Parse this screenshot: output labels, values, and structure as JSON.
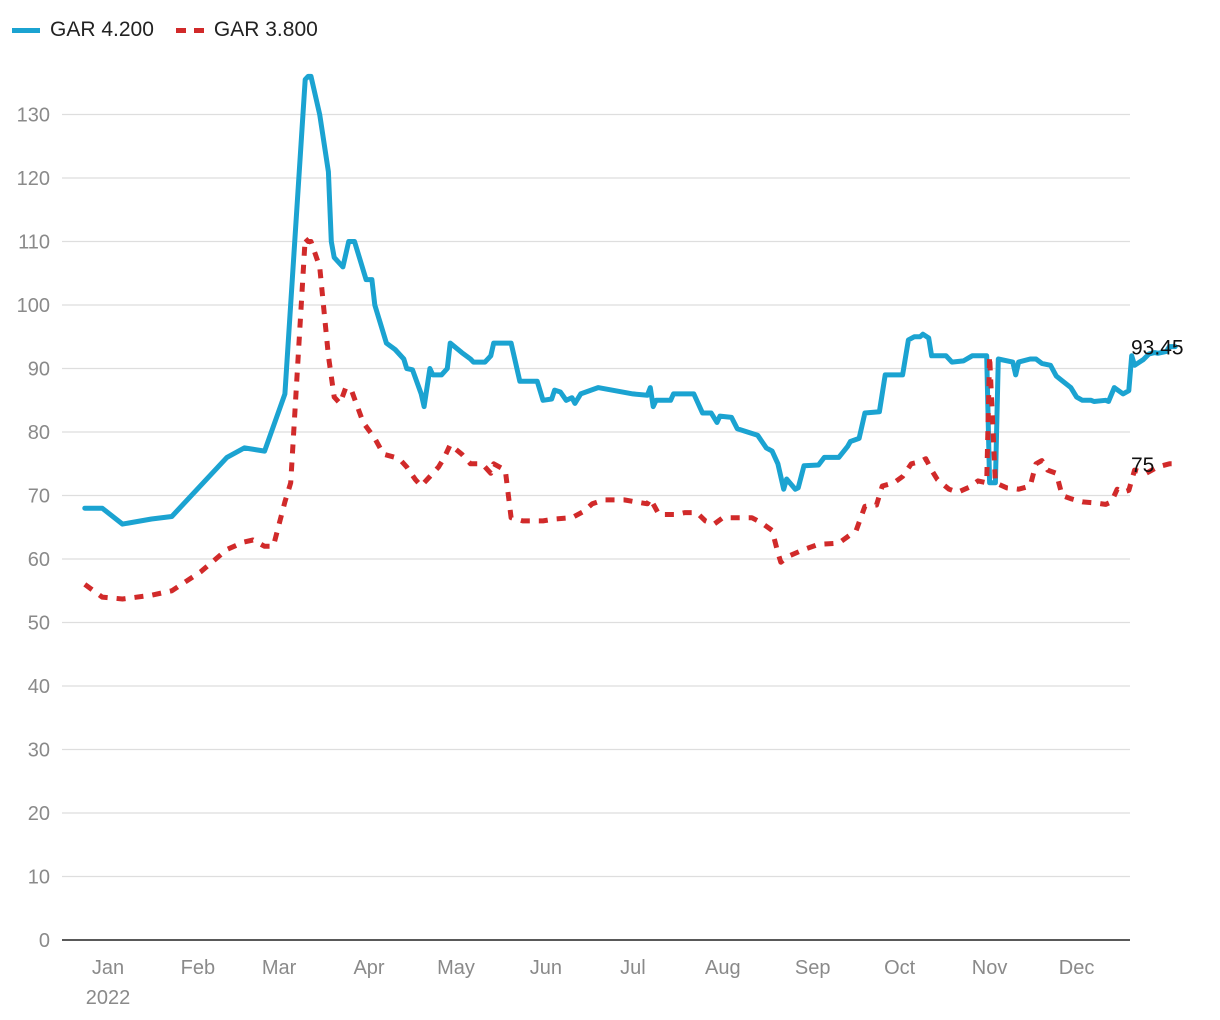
{
  "legend": [
    {
      "label": "GAR 4.200",
      "color": "#1ba3d1",
      "style": "solid"
    },
    {
      "label": "GAR 3.800",
      "color": "#d12a2a",
      "style": "dashed"
    }
  ],
  "chart_data": {
    "type": "line",
    "ylim": [
      0,
      140
    ],
    "yticks": [
      0,
      10,
      20,
      30,
      40,
      50,
      60,
      70,
      80,
      90,
      100,
      110,
      120,
      130
    ],
    "grid": true,
    "legend_position": "top-left",
    "xlim": [
      "2022-01-01",
      "2022-12-31"
    ],
    "month_ticks": [
      {
        "label": "Jan",
        "date": "2022-01-15",
        "sub": "2022"
      },
      {
        "label": "Feb",
        "date": "2022-02-15",
        "sub": ""
      },
      {
        "label": "Mar",
        "date": "2022-03-15",
        "sub": ""
      },
      {
        "label": "Apr",
        "date": "2022-04-15",
        "sub": ""
      },
      {
        "label": "May",
        "date": "2022-05-15",
        "sub": ""
      },
      {
        "label": "Jun",
        "date": "2022-06-15",
        "sub": ""
      },
      {
        "label": "Jul",
        "date": "2022-07-15",
        "sub": ""
      },
      {
        "label": "Aug",
        "date": "2022-08-15",
        "sub": ""
      },
      {
        "label": "Sep",
        "date": "2022-09-15",
        "sub": ""
      },
      {
        "label": "Oct",
        "date": "2022-10-15",
        "sub": ""
      },
      {
        "label": "Nov",
        "date": "2022-11-15",
        "sub": ""
      },
      {
        "label": "Dec",
        "date": "2022-12-15",
        "sub": ""
      }
    ],
    "series": [
      {
        "name": "GAR 4.200",
        "color": "#1ba3d1",
        "dashed": false,
        "end_label": "93.45",
        "points": [
          [
            "2022-01-07",
            68
          ],
          [
            "2022-01-13",
            68
          ],
          [
            "2022-01-20",
            65.5
          ],
          [
            "2022-01-30",
            66.3
          ],
          [
            "2022-02-06",
            66.7
          ],
          [
            "2022-02-25",
            76
          ],
          [
            "2022-03-03",
            77.5
          ],
          [
            "2022-03-10",
            77
          ],
          [
            "2022-03-17",
            86
          ],
          [
            "2022-03-24",
            135.5
          ],
          [
            "2022-03-25",
            136
          ],
          [
            "2022-03-26",
            136
          ],
          [
            "2022-03-29",
            130
          ],
          [
            "2022-04-01",
            121
          ],
          [
            "2022-04-02",
            110
          ],
          [
            "2022-04-03",
            107.5
          ],
          [
            "2022-04-06",
            106
          ],
          [
            "2022-04-08",
            110
          ],
          [
            "2022-04-10",
            110
          ],
          [
            "2022-04-14",
            104
          ],
          [
            "2022-04-16",
            104
          ],
          [
            "2022-04-17",
            100
          ],
          [
            "2022-04-21",
            94
          ],
          [
            "2022-04-24",
            93
          ],
          [
            "2022-04-27",
            91.5
          ],
          [
            "2022-04-28",
            90
          ],
          [
            "2022-04-30",
            89.8
          ],
          [
            "2022-05-03",
            86
          ],
          [
            "2022-05-04",
            84
          ],
          [
            "2022-05-06",
            90
          ],
          [
            "2022-05-07",
            89
          ],
          [
            "2022-05-10",
            89
          ],
          [
            "2022-05-12",
            90
          ],
          [
            "2022-05-13",
            94
          ],
          [
            "2022-05-17",
            92.5
          ],
          [
            "2022-05-20",
            91.5
          ],
          [
            "2022-05-21",
            91
          ],
          [
            "2022-05-25",
            91
          ],
          [
            "2022-05-27",
            92
          ],
          [
            "2022-05-28",
            94
          ],
          [
            "2022-06-03",
            94
          ],
          [
            "2022-06-06",
            88
          ],
          [
            "2022-06-12",
            88
          ],
          [
            "2022-06-14",
            85
          ],
          [
            "2022-06-17",
            85.2
          ],
          [
            "2022-06-18",
            86.6
          ],
          [
            "2022-06-20",
            86.3
          ],
          [
            "2022-06-22",
            85
          ],
          [
            "2022-06-24",
            85.4
          ],
          [
            "2022-06-25",
            84.5
          ],
          [
            "2022-06-27",
            86
          ],
          [
            "2022-07-03",
            87
          ],
          [
            "2022-07-15",
            86
          ],
          [
            "2022-07-20",
            85.8
          ],
          [
            "2022-07-21",
            87
          ],
          [
            "2022-07-22",
            84
          ],
          [
            "2022-07-23",
            85
          ],
          [
            "2022-07-28",
            85
          ],
          [
            "2022-07-29",
            86
          ],
          [
            "2022-08-05",
            86
          ],
          [
            "2022-08-08",
            83
          ],
          [
            "2022-08-11",
            83
          ],
          [
            "2022-08-13",
            81.5
          ],
          [
            "2022-08-14",
            82.5
          ],
          [
            "2022-08-18",
            82.3
          ],
          [
            "2022-08-20",
            80.5
          ],
          [
            "2022-08-27",
            79.5
          ],
          [
            "2022-08-30",
            77.5
          ],
          [
            "2022-09-01",
            77
          ],
          [
            "2022-09-03",
            75
          ],
          [
            "2022-09-05",
            71
          ],
          [
            "2022-09-06",
            72.6
          ],
          [
            "2022-09-09",
            71
          ],
          [
            "2022-09-10",
            71.2
          ],
          [
            "2022-09-12",
            74.7
          ],
          [
            "2022-09-17",
            74.8
          ],
          [
            "2022-09-19",
            76
          ],
          [
            "2022-09-24",
            76
          ],
          [
            "2022-09-27",
            77.7
          ],
          [
            "2022-09-28",
            78.5
          ],
          [
            "2022-10-01",
            79
          ],
          [
            "2022-10-03",
            83
          ],
          [
            "2022-10-08",
            83.2
          ],
          [
            "2022-10-10",
            89
          ],
          [
            "2022-10-16",
            89
          ],
          [
            "2022-10-18",
            94.5
          ],
          [
            "2022-10-20",
            95
          ],
          [
            "2022-10-22",
            95
          ],
          [
            "2022-10-23",
            95.4
          ],
          [
            "2022-10-25",
            94.8
          ],
          [
            "2022-10-26",
            92
          ],
          [
            "2022-10-31",
            92
          ],
          [
            "2022-11-02",
            91
          ],
          [
            "2022-11-06",
            91.2
          ],
          [
            "2022-11-09",
            92
          ],
          [
            "2022-11-14",
            92
          ],
          [
            "2022-11-15",
            72
          ],
          [
            "2022-11-17",
            72
          ],
          [
            "2022-11-18",
            91.5
          ],
          [
            "2022-11-23",
            91
          ],
          [
            "2022-11-24",
            89
          ],
          [
            "2022-11-25",
            91
          ],
          [
            "2022-11-29",
            91.5
          ],
          [
            "2022-12-01",
            91.5
          ],
          [
            "2022-12-03",
            90.8
          ],
          [
            "2022-12-06",
            90.5
          ],
          [
            "2022-12-08",
            88.8
          ],
          [
            "2022-12-13",
            87
          ],
          [
            "2022-12-15",
            85.5
          ],
          [
            "2022-12-17",
            85
          ],
          [
            "2022-12-20",
            85
          ],
          [
            "2022-12-21",
            84.8
          ],
          [
            "2022-12-25",
            85
          ],
          [
            "2022-12-26",
            84.8
          ],
          [
            "2022-12-28",
            87
          ],
          [
            "2022-12-31",
            86
          ],
          [
            "2023-01-02",
            86.5
          ],
          [
            "2023-01-03",
            92
          ],
          [
            "2023-01-04",
            90.5
          ],
          [
            "2023-01-07",
            91.4
          ],
          [
            "2023-01-09",
            92.3
          ],
          [
            "2023-01-11",
            92.5
          ],
          [
            "2023-01-12",
            92.4
          ],
          [
            "2023-01-15",
            92.7
          ],
          [
            "2023-01-16",
            93.45
          ],
          [
            "2023-01-18",
            93.45
          ]
        ]
      },
      {
        "name": "GAR 3.800",
        "color": "#d12a2a",
        "dashed": true,
        "end_label": "75",
        "points": [
          [
            "2022-01-07",
            56
          ],
          [
            "2022-01-13",
            54
          ],
          [
            "2022-01-20",
            53.7
          ],
          [
            "2022-01-30",
            54.3
          ],
          [
            "2022-02-06",
            55
          ],
          [
            "2022-02-16",
            58
          ],
          [
            "2022-02-25",
            61.5
          ],
          [
            "2022-03-03",
            62.7
          ],
          [
            "2022-03-06",
            63
          ],
          [
            "2022-03-10",
            62
          ],
          [
            "2022-03-13",
            62
          ],
          [
            "2022-03-17",
            69
          ],
          [
            "2022-03-19",
            72
          ],
          [
            "2022-03-24",
            110.5
          ],
          [
            "2022-03-25",
            110
          ],
          [
            "2022-03-26",
            110
          ],
          [
            "2022-03-29",
            106
          ],
          [
            "2022-04-01",
            92
          ],
          [
            "2022-04-03",
            85.5
          ],
          [
            "2022-04-05",
            84.5
          ],
          [
            "2022-04-07",
            87
          ],
          [
            "2022-04-09",
            86.5
          ],
          [
            "2022-04-13",
            81.5
          ],
          [
            "2022-04-17",
            79
          ],
          [
            "2022-04-20",
            76.5
          ],
          [
            "2022-04-24",
            76
          ],
          [
            "2022-04-26",
            75.5
          ],
          [
            "2022-04-28",
            74.5
          ],
          [
            "2022-05-01",
            72.5
          ],
          [
            "2022-05-03",
            71.5
          ],
          [
            "2022-05-06",
            73
          ],
          [
            "2022-05-09",
            74.5
          ],
          [
            "2022-05-11",
            76
          ],
          [
            "2022-05-13",
            78
          ],
          [
            "2022-05-17",
            76.5
          ],
          [
            "2022-05-20",
            75
          ],
          [
            "2022-05-24",
            75
          ],
          [
            "2022-05-27",
            73.5
          ],
          [
            "2022-05-28",
            75
          ],
          [
            "2022-06-01",
            74
          ],
          [
            "2022-06-03",
            66.5
          ],
          [
            "2022-06-07",
            66
          ],
          [
            "2022-06-14",
            66
          ],
          [
            "2022-06-18",
            66.3
          ],
          [
            "2022-06-24",
            66.5
          ],
          [
            "2022-06-28",
            67.5
          ],
          [
            "2022-07-01",
            68.7
          ],
          [
            "2022-07-05",
            69.3
          ],
          [
            "2022-07-12",
            69.3
          ],
          [
            "2022-07-16",
            69
          ],
          [
            "2022-07-20",
            68.7
          ],
          [
            "2022-07-21",
            69.5
          ],
          [
            "2022-07-24",
            67
          ],
          [
            "2022-07-30",
            67
          ],
          [
            "2022-08-02",
            67.3
          ],
          [
            "2022-08-06",
            67.3
          ],
          [
            "2022-08-09",
            66
          ],
          [
            "2022-08-12",
            65.5
          ],
          [
            "2022-08-15",
            66.5
          ],
          [
            "2022-08-21",
            66.5
          ],
          [
            "2022-08-25",
            66.5
          ],
          [
            "2022-08-28",
            65.8
          ],
          [
            "2022-09-01",
            64.5
          ],
          [
            "2022-09-03",
            61
          ],
          [
            "2022-09-04",
            59.5
          ],
          [
            "2022-09-07",
            60.5
          ],
          [
            "2022-09-12",
            61.5
          ],
          [
            "2022-09-17",
            62.3
          ],
          [
            "2022-09-24",
            62.5
          ],
          [
            "2022-09-27",
            63.5
          ],
          [
            "2022-09-30",
            64.5
          ],
          [
            "2022-10-03",
            68.3
          ],
          [
            "2022-10-07",
            68.5
          ],
          [
            "2022-10-09",
            71.5
          ],
          [
            "2022-10-13",
            72
          ],
          [
            "2022-10-16",
            73
          ],
          [
            "2022-10-19",
            75
          ],
          [
            "2022-10-22",
            75.3
          ],
          [
            "2022-10-24",
            75.8
          ],
          [
            "2022-10-26",
            74
          ],
          [
            "2022-10-28",
            72.5
          ],
          [
            "2022-11-01",
            71
          ],
          [
            "2022-11-04",
            70.5
          ],
          [
            "2022-11-08",
            71.3
          ],
          [
            "2022-11-11",
            72.3
          ],
          [
            "2022-11-14",
            72
          ],
          [
            "2022-11-15",
            92
          ],
          [
            "2022-11-17",
            72
          ],
          [
            "2022-11-21",
            71.2
          ],
          [
            "2022-11-25",
            71
          ],
          [
            "2022-11-29",
            71.5
          ],
          [
            "2022-12-01",
            75
          ],
          [
            "2022-12-03",
            75.5
          ],
          [
            "2022-12-05",
            74
          ],
          [
            "2022-12-08",
            73.5
          ],
          [
            "2022-12-10",
            70
          ],
          [
            "2022-12-13",
            69.5
          ],
          [
            "2022-12-17",
            69
          ],
          [
            "2022-12-22",
            68.8
          ],
          [
            "2022-12-25",
            68.6
          ],
          [
            "2022-12-27",
            69
          ],
          [
            "2022-12-29",
            71
          ],
          [
            "2022-12-31",
            70.5
          ],
          [
            "2023-01-02",
            70.8
          ],
          [
            "2023-01-04",
            74
          ],
          [
            "2023-01-08",
            73.5
          ],
          [
            "2023-01-12",
            74.5
          ],
          [
            "2023-01-16",
            75
          ],
          [
            "2023-01-18",
            75
          ]
        ]
      }
    ]
  }
}
